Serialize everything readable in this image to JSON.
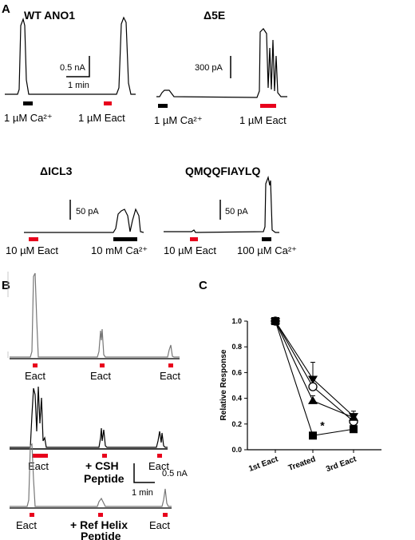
{
  "panels": {
    "a": {
      "letter": "A",
      "wt": {
        "title": "WT ANO1",
        "scale_y": "0.5 nA",
        "scale_x": "1 min",
        "label1": "1 µM Ca²⁺",
        "label2": "1 µM Eact"
      },
      "d5e": {
        "title": "Δ5E",
        "scale_y": "300 pA",
        "label1": "1 µM Ca²⁺",
        "label2": "1 µM Eact"
      },
      "dicl3": {
        "title": "ΔICL3",
        "scale_y": "50 pA",
        "label1": "10 µM Eact",
        "label2": "10 mM Ca²⁺"
      },
      "qmq": {
        "title": "QMQQFIAYLQ",
        "scale_y": "50 pA",
        "label1": "10 µM Eact",
        "label2": "100 µM Ca²⁺"
      }
    },
    "b": {
      "letter": "B",
      "row1": {
        "label1": "Eact",
        "label2": "Eact",
        "label3": "Eact"
      },
      "row2": {
        "label1": "Eact",
        "label2_line1": "+ CSH",
        "label2_line2": "Peptide",
        "label3": "Eact"
      },
      "row3": {
        "label1": "Eact",
        "label2_line1": "+ Ref Helix",
        "label2_line2": "Peptide",
        "label3": "Eact"
      },
      "scale_y": "0.5 nA",
      "scale_x": "1 min"
    },
    "c": {
      "letter": "C",
      "significance": "*"
    }
  },
  "colors": {
    "stimulus_red": "#e8001c",
    "stimulus_black": "#000000",
    "trace": "#000000",
    "trace_gray": "#777777"
  },
  "chart_data": {
    "type": "line",
    "categories": [
      "1st Eact",
      "Treated",
      "3rd Eact"
    ],
    "ylabel": "Relative Response",
    "ylim": [
      0,
      1.0
    ],
    "yticks": [
      "0.0",
      "0.2",
      "0.4",
      "0.6",
      "0.8",
      "1.0"
    ],
    "series": [
      {
        "marker": "triangle-down",
        "values": [
          1.0,
          0.55,
          0.26
        ],
        "errors": [
          0,
          0.13,
          0.04
        ]
      },
      {
        "marker": "circle-open",
        "values": [
          1.0,
          0.49,
          0.22
        ],
        "errors": [
          0,
          0.05,
          0.03
        ]
      },
      {
        "marker": "triangle-up",
        "values": [
          1.0,
          0.38,
          0.25
        ],
        "errors": [
          0,
          0.04,
          0.03
        ]
      },
      {
        "marker": "square",
        "values": [
          1.0,
          0.11,
          0.16
        ],
        "errors": [
          0,
          0.01,
          0.02
        ]
      }
    ]
  }
}
